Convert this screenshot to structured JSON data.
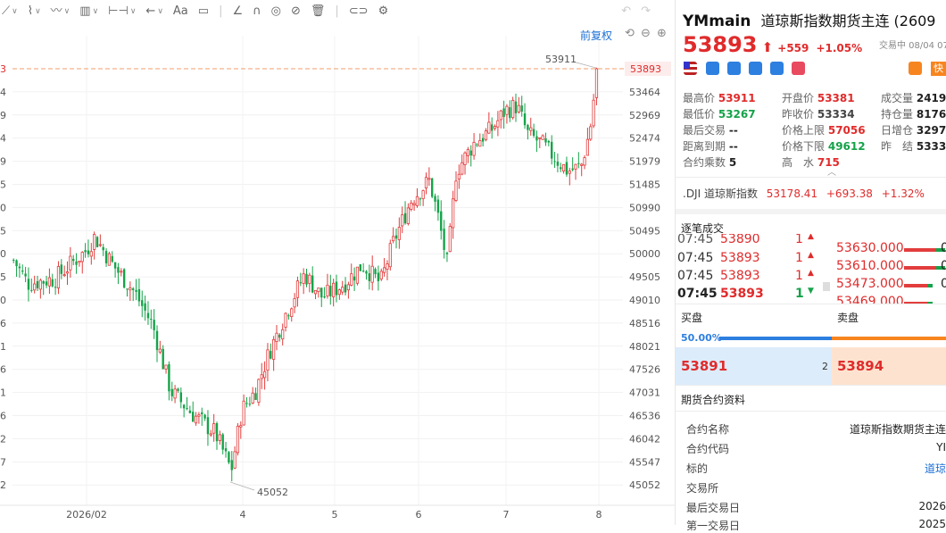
{
  "toolbar": {
    "aa_label": "Aa"
  },
  "chart": {
    "restore_label": "前复权",
    "y_ticks": [
      "53893",
      "53464",
      "52969",
      "52474",
      "51979",
      "51485",
      "50990",
      "50495",
      "50000",
      "49505",
      "49010",
      "48516",
      "48021",
      "47526",
      "47031",
      "46536",
      "46042",
      "45547",
      "45052"
    ],
    "left_clip_labels": [
      "3",
      "4",
      "9",
      "4",
      "9",
      "5",
      "0",
      "5",
      "0",
      "5",
      "0",
      "6",
      "1",
      "6",
      "1",
      "6",
      "2",
      "7",
      "2"
    ],
    "x_labels": [
      "2026/02",
      "4",
      "5",
      "6",
      "7",
      "8"
    ],
    "high_label": "53911",
    "low_label": "45052",
    "current_price_label": "53893"
  },
  "chart_data": {
    "type": "candlestick",
    "y_axis_labels": [
      53893,
      53464,
      52969,
      52474,
      51979,
      51485,
      50990,
      50495,
      50000,
      49505,
      49010,
      48516,
      48021,
      47526,
      47031,
      46536,
      46042,
      45547,
      45052
    ],
    "x_axis_labels": [
      "2026/02",
      "4",
      "5",
      "6",
      "7",
      "8"
    ],
    "annotated_high": 53911,
    "annotated_low": 45052,
    "last_price": 53893,
    "colors": {
      "up": "#e23c3c",
      "down": "#16a34a",
      "price_line": "#f39c6b"
    }
  },
  "quote": {
    "symbol": "YMmain",
    "name": "道琼斯指数期货主连 (2609",
    "price": "53893",
    "arrow": "⬆",
    "change": "+559",
    "change_pct": "+1.05%",
    "status": "交易中 08/04 07",
    "kuai": "快"
  },
  "stats": {
    "high_label": "最高价",
    "high": "53911",
    "open_label": "开盘价",
    "open": "53381",
    "volume_label": "成交量",
    "volume": "2419",
    "low_label": "最低价",
    "low": "53267",
    "prev_close_label": "昨收价",
    "prev_close": "53334",
    "oi_label": "持仓量",
    "oi": "8176",
    "last_trade_label": "最后交易",
    "last_trade": "--",
    "limit_up_label": "价格上限",
    "limit_up": "57056",
    "daily_inc_label": "日增仓",
    "daily_inc": "3297",
    "expiry_label": "距离到期",
    "expiry": "--",
    "limit_down_label": "价格下限",
    "limit_down": "49612",
    "settle_label": "昨　结",
    "settle": "5333",
    "multiplier_label": "合约乘数",
    "multiplier": "5",
    "premium_label": "高　水",
    "premium": "715"
  },
  "dji": {
    "name": ".DJI 道琼斯指数",
    "price": "53178.41",
    "change": "+693.38",
    "pct": "+1.32%"
  },
  "trades": {
    "title": "逐笔成交",
    "rows": [
      {
        "time": "07:45",
        "price": "53890",
        "qty": "1"
      },
      {
        "time": "07:45",
        "price": "53893",
        "qty": "1"
      },
      {
        "time": "07:45",
        "price": "53893",
        "qty": "1"
      },
      {
        "time": "07:45",
        "price": "53893",
        "qty": "1"
      }
    ],
    "levels": [
      {
        "price": "53630.000",
        "qty": "0"
      },
      {
        "price": "53610.000",
        "qty": "0"
      },
      {
        "price": "53473.000",
        "qty": "0"
      },
      {
        "price": "53469.000",
        "qty": "0"
      }
    ]
  },
  "orderbook": {
    "buy_label": "买盘",
    "sell_label": "卖盘",
    "ratio": "50.00%",
    "bid": "53891",
    "bid_qty": "2",
    "ask": "53894"
  },
  "contract": {
    "title": "期货合约资料",
    "rows": [
      {
        "label": "合约名称",
        "value": "道琼斯指数期货主连"
      },
      {
        "label": "合约代码",
        "value": "YI"
      },
      {
        "label": "标的",
        "value": "道琼"
      },
      {
        "label": "交易所",
        "value": ""
      },
      {
        "label": "最后交易日",
        "value": "2026"
      },
      {
        "label": "第一交易日",
        "value": "2025"
      }
    ]
  }
}
